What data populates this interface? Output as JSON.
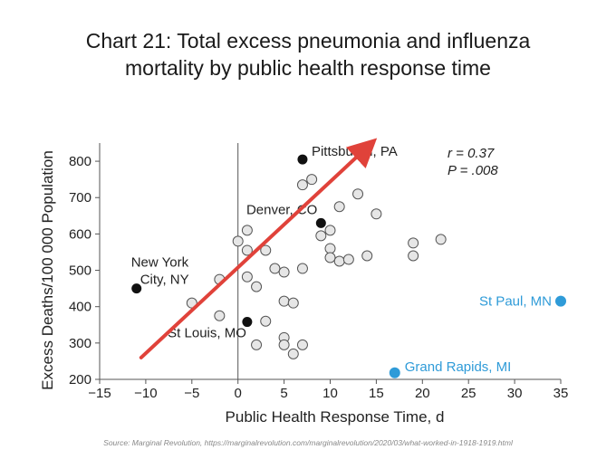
{
  "title_line1": "Chart 21: Total excess pneumonia and influenza",
  "title_line2": "mortality by public health response time",
  "source": "Source: Marginal Revolution, https://marginalrevolution.com/marginalrevolution/2020/03/what-worked-in-1918-1919.html",
  "colors": {
    "arrow": "#e0423a",
    "highlight": "#2f9bd8",
    "open_fill": "#e6e6e6",
    "solid": "#111111"
  },
  "chart_data": {
    "type": "scatter",
    "xlabel": "Public Health Response Time, d",
    "ylabel": "Excess Deaths/100 000 Population",
    "xlim": [
      -15,
      35
    ],
    "ylim": [
      200,
      850
    ],
    "xticks": [
      -15,
      -10,
      -5,
      0,
      5,
      10,
      15,
      20,
      25,
      30,
      35
    ],
    "xtick_labels": [
      "−15",
      "−10",
      "−5",
      "0",
      "5",
      "10",
      "15",
      "20",
      "25",
      "30",
      "35"
    ],
    "yticks": [
      200,
      300,
      400,
      500,
      600,
      700,
      800
    ],
    "ytick_labels": [
      "200",
      "300",
      "400",
      "500",
      "600",
      "700",
      "800"
    ],
    "stats": {
      "r": "r = 0.37",
      "p": "P = .008"
    },
    "labeled_cities": [
      {
        "name": "Pittsburgh, PA",
        "x": 7,
        "y": 805,
        "style": "solid"
      },
      {
        "name": "Denver, CO",
        "x": 9,
        "y": 630,
        "style": "solid"
      },
      {
        "name": "New York\nCity, NY",
        "x": -11,
        "y": 450,
        "style": "solid"
      },
      {
        "name": "St Louis, MO",
        "x": 1,
        "y": 358,
        "style": "solid"
      },
      {
        "name": "St Paul, MN",
        "x": 35,
        "y": 415,
        "style": "highlight"
      },
      {
        "name": "Grand Rapids, MI",
        "x": 17,
        "y": 218,
        "style": "highlight"
      }
    ],
    "open_points": [
      [
        -5,
        410
      ],
      [
        -2,
        475
      ],
      [
        -2,
        375
      ],
      [
        0,
        580
      ],
      [
        1,
        610
      ],
      [
        1,
        555
      ],
      [
        1,
        482
      ],
      [
        2,
        455
      ],
      [
        2,
        295
      ],
      [
        3,
        555
      ],
      [
        3,
        360
      ],
      [
        4,
        505
      ],
      [
        5,
        495
      ],
      [
        5,
        415
      ],
      [
        5,
        315
      ],
      [
        5,
        295
      ],
      [
        6,
        410
      ],
      [
        6,
        270
      ],
      [
        7,
        735
      ],
      [
        7,
        505
      ],
      [
        7,
        295
      ],
      [
        8,
        750
      ],
      [
        9,
        595
      ],
      [
        10,
        610
      ],
      [
        10,
        560
      ],
      [
        10,
        535
      ],
      [
        11,
        675
      ],
      [
        11,
        525
      ],
      [
        12,
        530
      ],
      [
        13,
        710
      ],
      [
        14,
        540
      ],
      [
        15,
        655
      ],
      [
        19,
        575
      ],
      [
        19,
        540
      ],
      [
        22,
        585
      ]
    ],
    "trend_arrow": {
      "from": [
        -10.5,
        260
      ],
      "to": [
        14.5,
        850
      ]
    }
  }
}
